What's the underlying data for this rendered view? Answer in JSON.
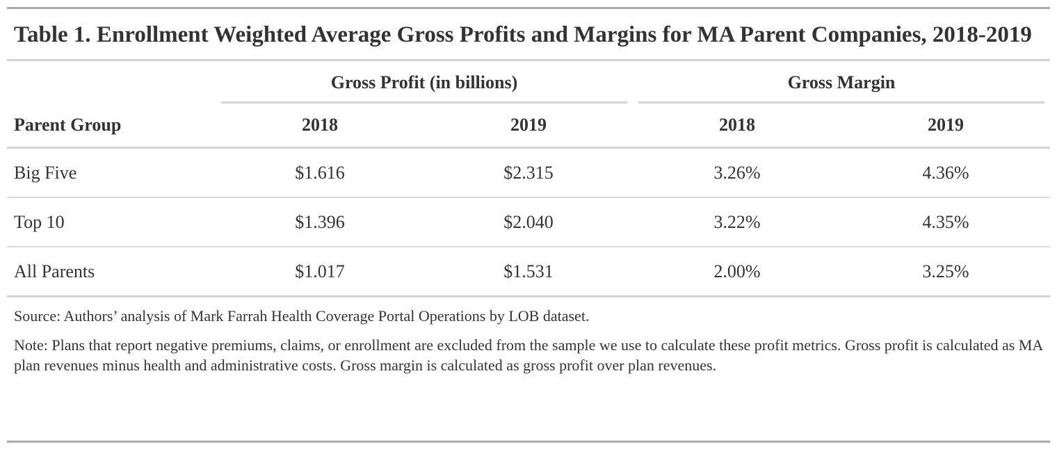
{
  "title": "Table 1. Enrollment Weighted Average Gross Profits and Margins for MA Parent Companies, 2018-2019",
  "column_groups": [
    "Gross Profit (in billions)",
    "Gross Margin"
  ],
  "columns": [
    "Parent Group",
    "2018",
    "2019",
    "2018",
    "2019"
  ],
  "rows": [
    [
      "Big Five",
      "$1.616",
      "$2.315",
      "3.26%",
      "4.36%"
    ],
    [
      "Top 10",
      "$1.396",
      "$2.040",
      "3.22%",
      "4.35%"
    ],
    [
      "All Parents",
      "$1.017",
      "$1.531",
      "2.00%",
      "3.25%"
    ]
  ],
  "source": "Source: Authors’ analysis of Mark Farrah Health Coverage Portal Operations by LOB dataset.",
  "note": "Note: Plans that report negative premiums, claims, or enrollment are excluded from the sample we use to calculate these profit metrics. Gross profit is calculated as MA plan revenues minus health and administrative costs. Gross margin is calculated as gross profit over plan revenues."
}
